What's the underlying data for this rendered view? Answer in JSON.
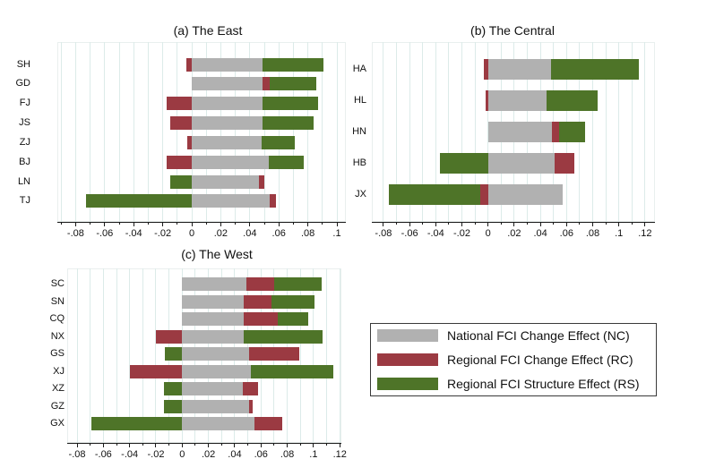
{
  "figure": {
    "kind": "three-panel horizontal stacked bar chart (FCI decomposition by Chinese province)"
  },
  "chart_data": [
    {
      "type": "bar",
      "orientation": "horizontal",
      "title": "(a) The East",
      "categories": [
        "SH",
        "GD",
        "FJ",
        "JS",
        "ZJ",
        "BJ",
        "LN",
        "TJ"
      ],
      "series": [
        {
          "key": "NC",
          "name": "National FCI Change Effect (NC)",
          "color": "#b1b1b1",
          "values": [
            0.049,
            0.049,
            0.049,
            0.049,
            0.048,
            0.053,
            0.046,
            0.054
          ]
        },
        {
          "key": "RC",
          "name": "Regional FCI Change Effect (RC)",
          "color": "#9b3a42",
          "values": [
            -0.004,
            0.005,
            -0.017,
            -0.015,
            -0.003,
            -0.017,
            0.004,
            0.004
          ]
        },
        {
          "key": "RS",
          "name": "Regional FCI Structure Effect (RS)",
          "color": "#4e7428",
          "values": [
            0.042,
            0.032,
            0.038,
            0.035,
            0.023,
            0.024,
            -0.015,
            -0.073
          ]
        }
      ],
      "xticks": [
        {
          "v": -0.08,
          "label": "-.08"
        },
        {
          "v": -0.06,
          "label": "-.06"
        },
        {
          "v": -0.04,
          "label": "-.04"
        },
        {
          "v": -0.02,
          "label": "-.02"
        },
        {
          "v": 0,
          "label": "0"
        },
        {
          "v": 0.02,
          "label": ".02"
        },
        {
          "v": 0.04,
          "label": ".04"
        },
        {
          "v": 0.06,
          "label": ".06"
        },
        {
          "v": 0.08,
          "label": ".08"
        },
        {
          "v": 0.1,
          "label": ".1"
        }
      ],
      "grid": {
        "min": -0.09,
        "max": 0.1,
        "step": 0.01
      },
      "grid_on": true
    },
    {
      "type": "bar",
      "orientation": "horizontal",
      "title": "(b) The Central",
      "categories": [
        "HA",
        "HL",
        "HN",
        "HB",
        "JX"
      ],
      "series": [
        {
          "key": "NC",
          "name": "National FCI Change Effect (NC)",
          "color": "#b1b1b1",
          "values": [
            0.048,
            0.045,
            0.049,
            0.051,
            0.057
          ]
        },
        {
          "key": "RC",
          "name": "Regional FCI Change Effect (RC)",
          "color": "#9b3a42",
          "values": [
            -0.003,
            -0.002,
            0.005,
            0.015,
            -0.006
          ]
        },
        {
          "key": "RS",
          "name": "Regional FCI Structure Effect (RS)",
          "color": "#4e7428",
          "values": [
            0.067,
            0.039,
            0.02,
            -0.037,
            -0.07
          ]
        }
      ],
      "xticks": [
        {
          "v": -0.08,
          "label": "-.08"
        },
        {
          "v": -0.06,
          "label": "-.06"
        },
        {
          "v": -0.04,
          "label": "-.04"
        },
        {
          "v": -0.02,
          "label": "-.02"
        },
        {
          "v": 0,
          "label": "0"
        },
        {
          "v": 0.02,
          "label": ".02"
        },
        {
          "v": 0.04,
          "label": ".04"
        },
        {
          "v": 0.06,
          "label": ".06"
        },
        {
          "v": 0.08,
          "label": ".08"
        },
        {
          "v": 0.1,
          "label": ".1"
        },
        {
          "v": 0.12,
          "label": ".12"
        }
      ],
      "grid": {
        "min": -0.08,
        "max": 0.12,
        "step": 0.01
      },
      "grid_on": true
    },
    {
      "type": "bar",
      "orientation": "horizontal",
      "title": "(c) The West",
      "categories": [
        "SC",
        "SN",
        "CQ",
        "NX",
        "GS",
        "XJ",
        "XZ",
        "GZ",
        "GX"
      ],
      "series": [
        {
          "key": "NC",
          "name": "National FCI Change Effect (NC)",
          "color": "#b1b1b1",
          "values": [
            0.049,
            0.047,
            0.047,
            0.047,
            0.051,
            0.052,
            0.046,
            0.051,
            0.055
          ]
        },
        {
          "key": "RC",
          "name": "Regional FCI Change Effect (RC)",
          "color": "#9b3a42",
          "values": [
            0.021,
            0.021,
            0.026,
            -0.02,
            0.038,
            -0.04,
            0.012,
            0.003,
            0.021
          ]
        },
        {
          "key": "RS",
          "name": "Regional FCI Structure Effect (RS)",
          "color": "#4e7428",
          "values": [
            0.036,
            0.033,
            0.023,
            0.06,
            -0.013,
            0.063,
            -0.014,
            -0.014,
            -0.069
          ]
        }
      ],
      "xticks": [
        {
          "v": -0.08,
          "label": "-.08"
        },
        {
          "v": -0.06,
          "label": "-.06"
        },
        {
          "v": -0.04,
          "label": "-.04"
        },
        {
          "v": -0.02,
          "label": "-.02"
        },
        {
          "v": 0,
          "label": "0"
        },
        {
          "v": 0.02,
          "label": ".02"
        },
        {
          "v": 0.04,
          "label": ".04"
        },
        {
          "v": 0.06,
          "label": ".06"
        },
        {
          "v": 0.08,
          "label": ".08"
        },
        {
          "v": 0.1,
          "label": ".1"
        },
        {
          "v": 0.12,
          "label": ".12"
        }
      ],
      "grid": {
        "min": -0.08,
        "max": 0.12,
        "step": 0.01
      },
      "grid_on": true
    }
  ],
  "legend": {
    "position": "bottom-right",
    "items": [
      {
        "label": "National FCI Change Effect (NC)",
        "color": "#b1b1b1"
      },
      {
        "label": "Regional FCI Change Effect (RC)",
        "color": "#9b3a42"
      },
      {
        "label": "Regional FCI Structure Effect (RS)",
        "color": "#4e7428"
      }
    ]
  },
  "colors": {
    "background": "#ffffff",
    "gridline": "#dcebe9",
    "axis": "#1a1a1a",
    "nc_gray": "#b1b1b1",
    "rc_red": "#9b3a42",
    "rs_green": "#4e7428"
  }
}
